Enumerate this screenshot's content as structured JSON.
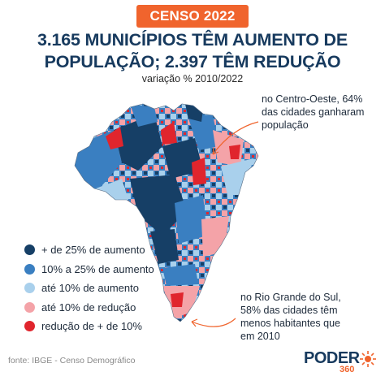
{
  "header": {
    "badge": "CENSO 2022",
    "title_line1": "3.165 MUNICÍPIOS TÊM AUMENTO DE",
    "title_line2": "POPULAÇÃO; 2.397 TÊM REDUÇÃO",
    "subtitle": "variação % 2010/2022"
  },
  "annotations": {
    "centro_oeste": [
      "no Centro-Oeste, 64%",
      "das cidades ganharam",
      "população"
    ],
    "rio_grande_do_sul": [
      "no Rio Grande do Sul,",
      "58% das cidades têm",
      "menos habitantes que",
      "em 2010"
    ]
  },
  "legend": [
    {
      "label": "+ de 25% de aumento",
      "color": "#163f66"
    },
    {
      "label": "10% a 25% de aumento",
      "color": "#3a7fc1"
    },
    {
      "label": "até 10% de aumento",
      "color": "#a9d0ec"
    },
    {
      "label": "até 10% de redução",
      "color": "#f4a3a8"
    },
    {
      "label": "redução de + de 10%",
      "color": "#e0252d"
    }
  ],
  "colors": {
    "accent": "#f0642d",
    "title": "#173a5e",
    "arrow": "#f0642d"
  },
  "footer": {
    "source": "fonte: IBGE - Censo Demográfico",
    "logo_word": "PODER",
    "logo_sub": "360"
  }
}
